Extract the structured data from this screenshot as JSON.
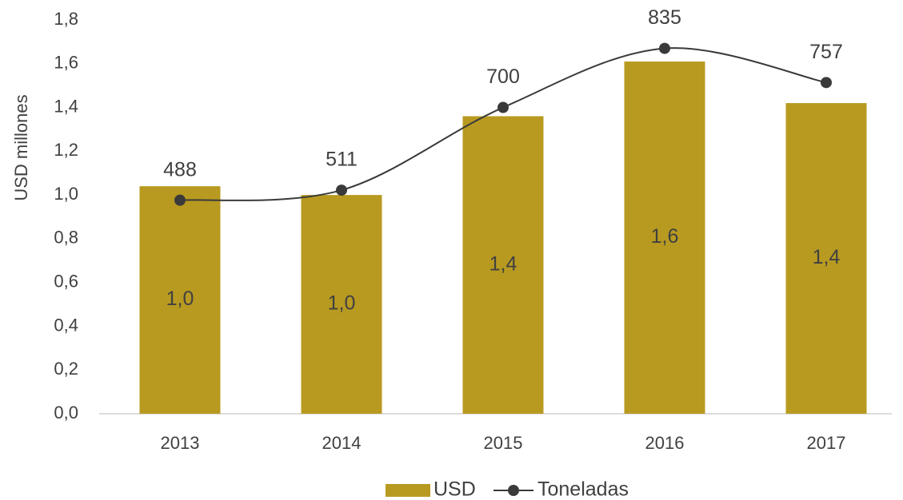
{
  "chart_data": {
    "type": "bar_line",
    "y_label": "USD millones",
    "categories": [
      "2013",
      "2014",
      "2015",
      "2016",
      "2017"
    ],
    "series": [
      {
        "name": "USD",
        "type": "bar",
        "color": "#b89a21",
        "values": [
          1.04,
          1.0,
          1.36,
          1.61,
          1.42
        ],
        "value_labels": [
          "1,0",
          "1,0",
          "1,4",
          "1,6",
          "1,4"
        ]
      },
      {
        "name": "Toneladas",
        "type": "line",
        "color": "#3a3a3a",
        "axis": "y2",
        "values": [
          488,
          511,
          700,
          835,
          757
        ]
      }
    ],
    "ylim": [
      0,
      1.8
    ],
    "yticks": [
      {
        "value": 0,
        "label": "0,0"
      },
      {
        "value": 0.2,
        "label": "0,2"
      },
      {
        "value": 0.4,
        "label": "0,4"
      },
      {
        "value": 0.6,
        "label": "0,6"
      },
      {
        "value": 0.8,
        "label": "0,8"
      },
      {
        "value": 1.0,
        "label": "1,0"
      },
      {
        "value": 1.2,
        "label": "1,2"
      },
      {
        "value": 1.4,
        "label": "1,4"
      },
      {
        "value": 1.6,
        "label": "1,6"
      },
      {
        "value": 1.8,
        "label": "1,8"
      }
    ],
    "y2lim": [
      0,
      900
    ],
    "legend": "bottom"
  }
}
